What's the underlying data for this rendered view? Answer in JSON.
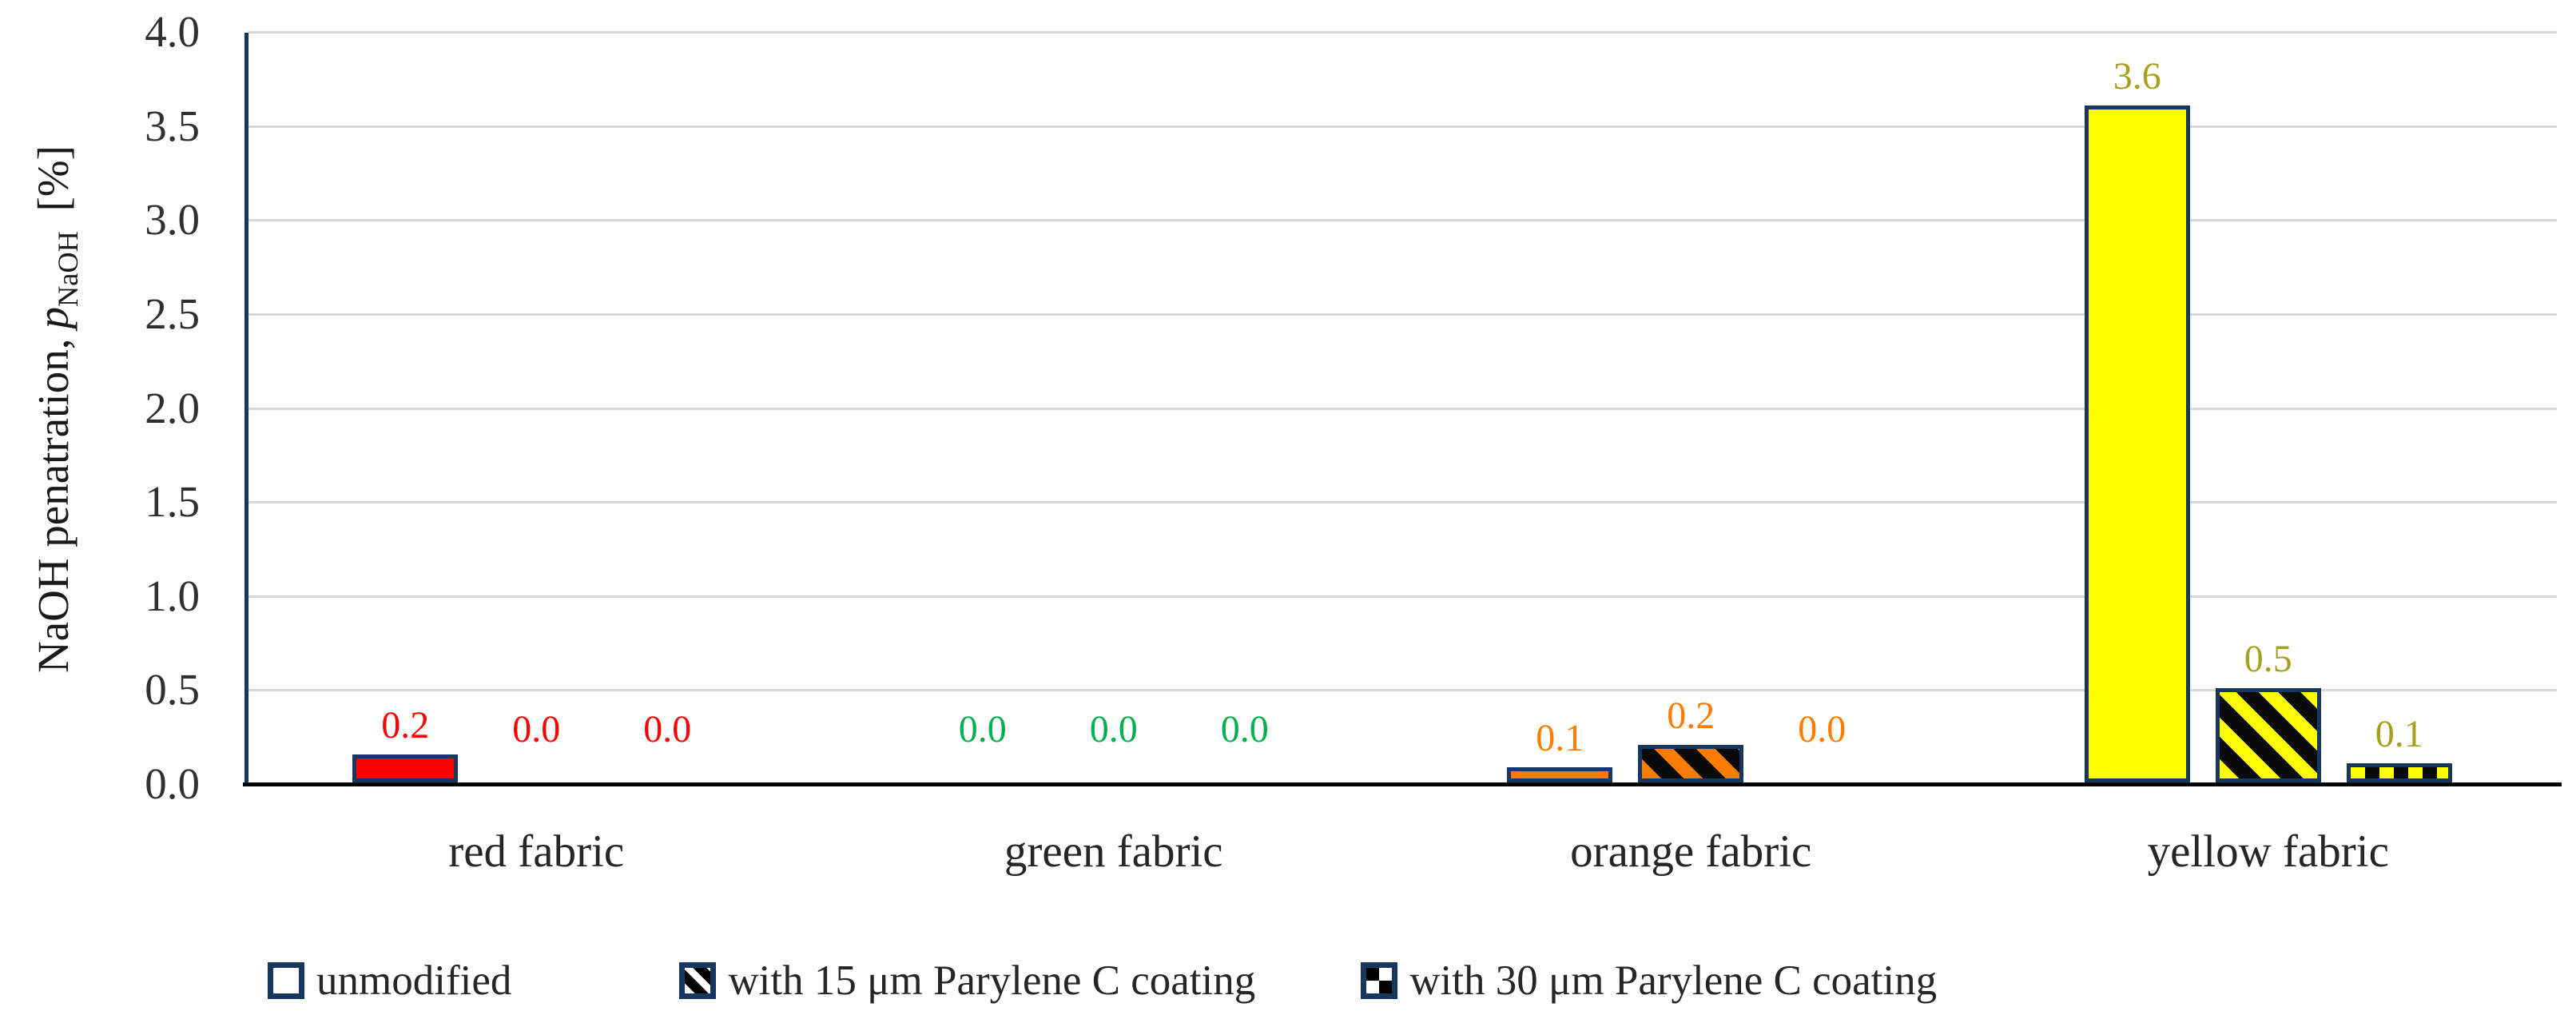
{
  "chart_data": {
    "type": "bar",
    "title": "",
    "ylabel": {
      "prefix": "NaOH penatration,",
      "symbol": "p",
      "subscript": "NaOH",
      "unit": "[%]"
    },
    "ylim": [
      0,
      4.0
    ],
    "y_tick_step": 0.5,
    "y_ticks": [
      "0.0",
      "0.5",
      "1.0",
      "1.5",
      "2.0",
      "2.5",
      "3.0",
      "3.5",
      "4.0"
    ],
    "grid": "horizontal",
    "legend_position": "bottom",
    "categories": [
      {
        "label": "red fabric",
        "fill": "#ff0000",
        "label_color": "#ff0000"
      },
      {
        "label": "green fabric",
        "fill": "#00b050",
        "label_color": "#00b050"
      },
      {
        "label": "orange fabric",
        "fill": "#fb7c00",
        "label_color": "#ff7c00"
      },
      {
        "label": "yellow fabric",
        "fill": "#ffff00",
        "label_color": "#a6a021"
      }
    ],
    "series": [
      {
        "name": "unmodified",
        "pattern": "solid",
        "values": [
          0.2,
          0.0,
          0.1,
          3.6
        ],
        "labels": [
          "0.2",
          "0.0",
          "0.1",
          "3.6"
        ],
        "drawn_heights": [
          0.15,
          0,
          0.08,
          3.6
        ]
      },
      {
        "name": "with 15 μm Parylene C coating",
        "pattern": "hatch",
        "values": [
          0.0,
          0.0,
          0.2,
          0.5
        ],
        "labels": [
          "0.0",
          "0.0",
          "0.2",
          "0.5"
        ],
        "drawn_heights": [
          0,
          0,
          0.2,
          0.5
        ]
      },
      {
        "name": "with 30 μm Parylene C coating",
        "pattern": "checker",
        "values": [
          0.0,
          0.0,
          0.0,
          0.1
        ],
        "labels": [
          "0.0",
          "0.0",
          "0.0",
          "0.1"
        ],
        "drawn_heights": [
          0,
          0,
          0,
          0.1
        ]
      }
    ],
    "colors": {
      "bar_border": "#17375e",
      "pattern_dark": "#0a0a0a",
      "gridline": "#d9d9d9",
      "y_axis_line": "#17375e",
      "x_axis_line": "#000000",
      "tick_text": "#303030",
      "category_text": "#262626",
      "legend_text": "#262626"
    }
  }
}
